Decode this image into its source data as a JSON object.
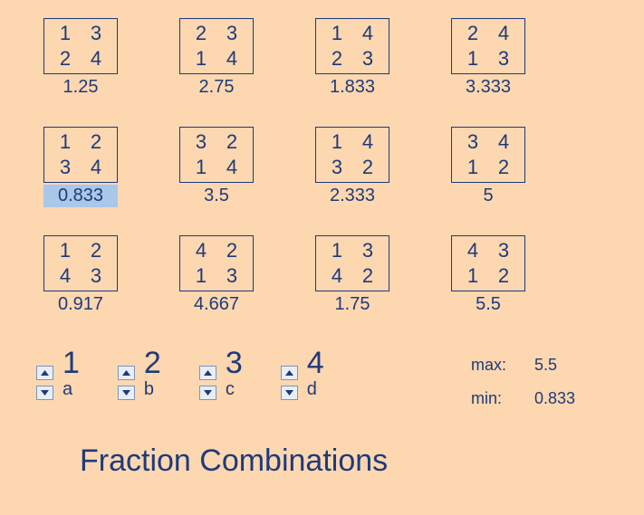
{
  "colors": {
    "background": "#fcd7b0",
    "foreground": "#1f3a7a",
    "highlight": "#a9c7e8",
    "spinner_bg": "#e8eef7",
    "spinner_border": "#7d95b8"
  },
  "grid": {
    "rows": 3,
    "cols": 4,
    "cells": [
      {
        "tl": "1",
        "tr": "3",
        "bl": "2",
        "br": "4",
        "result": "1.25",
        "highlight": false
      },
      {
        "tl": "2",
        "tr": "3",
        "bl": "1",
        "br": "4",
        "result": "2.75",
        "highlight": false
      },
      {
        "tl": "1",
        "tr": "4",
        "bl": "2",
        "br": "3",
        "result": "1.833",
        "highlight": false
      },
      {
        "tl": "2",
        "tr": "4",
        "bl": "1",
        "br": "3",
        "result": "3.333",
        "highlight": false
      },
      {
        "tl": "1",
        "tr": "2",
        "bl": "3",
        "br": "4",
        "result": "0.833",
        "highlight": true
      },
      {
        "tl": "3",
        "tr": "2",
        "bl": "1",
        "br": "4",
        "result": "3.5",
        "highlight": false
      },
      {
        "tl": "1",
        "tr": "4",
        "bl": "3",
        "br": "2",
        "result": "2.333",
        "highlight": false
      },
      {
        "tl": "3",
        "tr": "4",
        "bl": "1",
        "br": "2",
        "result": "5",
        "highlight": false
      },
      {
        "tl": "1",
        "tr": "2",
        "bl": "4",
        "br": "3",
        "result": "0.917",
        "highlight": false
      },
      {
        "tl": "4",
        "tr": "2",
        "bl": "1",
        "br": "3",
        "result": "4.667",
        "highlight": false
      },
      {
        "tl": "1",
        "tr": "3",
        "bl": "4",
        "br": "2",
        "result": "1.75",
        "highlight": false
      },
      {
        "tl": "4",
        "tr": "3",
        "bl": "1",
        "br": "2",
        "result": "5.5",
        "highlight": false
      }
    ]
  },
  "controls": [
    {
      "value": "1",
      "label": "a"
    },
    {
      "value": "2",
      "label": "b"
    },
    {
      "value": "3",
      "label": "c"
    },
    {
      "value": "4",
      "label": "d"
    }
  ],
  "stats": {
    "max_label": "max:",
    "max_value": "5.5",
    "min_label": "min:",
    "min_value": "0.833"
  },
  "title": "Fraction Combinations"
}
